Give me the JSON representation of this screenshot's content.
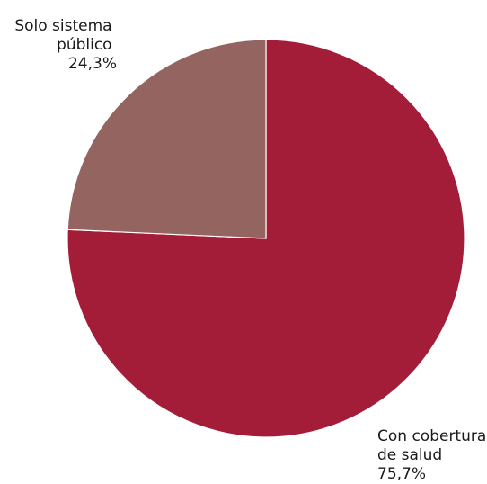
{
  "chart_data": {
    "type": "pie",
    "title": "",
    "slices": [
      {
        "label_lines": [
          "Con cobertura",
          "de salud"
        ],
        "value_label": "75,7%",
        "value": 75.7,
        "color": "#a31c38"
      },
      {
        "label_lines": [
          "Solo sistema",
          "público"
        ],
        "value_label": "24,3%",
        "value": 24.3,
        "color": "#946461"
      }
    ],
    "start_angle_deg": 0,
    "direction": "clockwise",
    "legend": "none"
  }
}
